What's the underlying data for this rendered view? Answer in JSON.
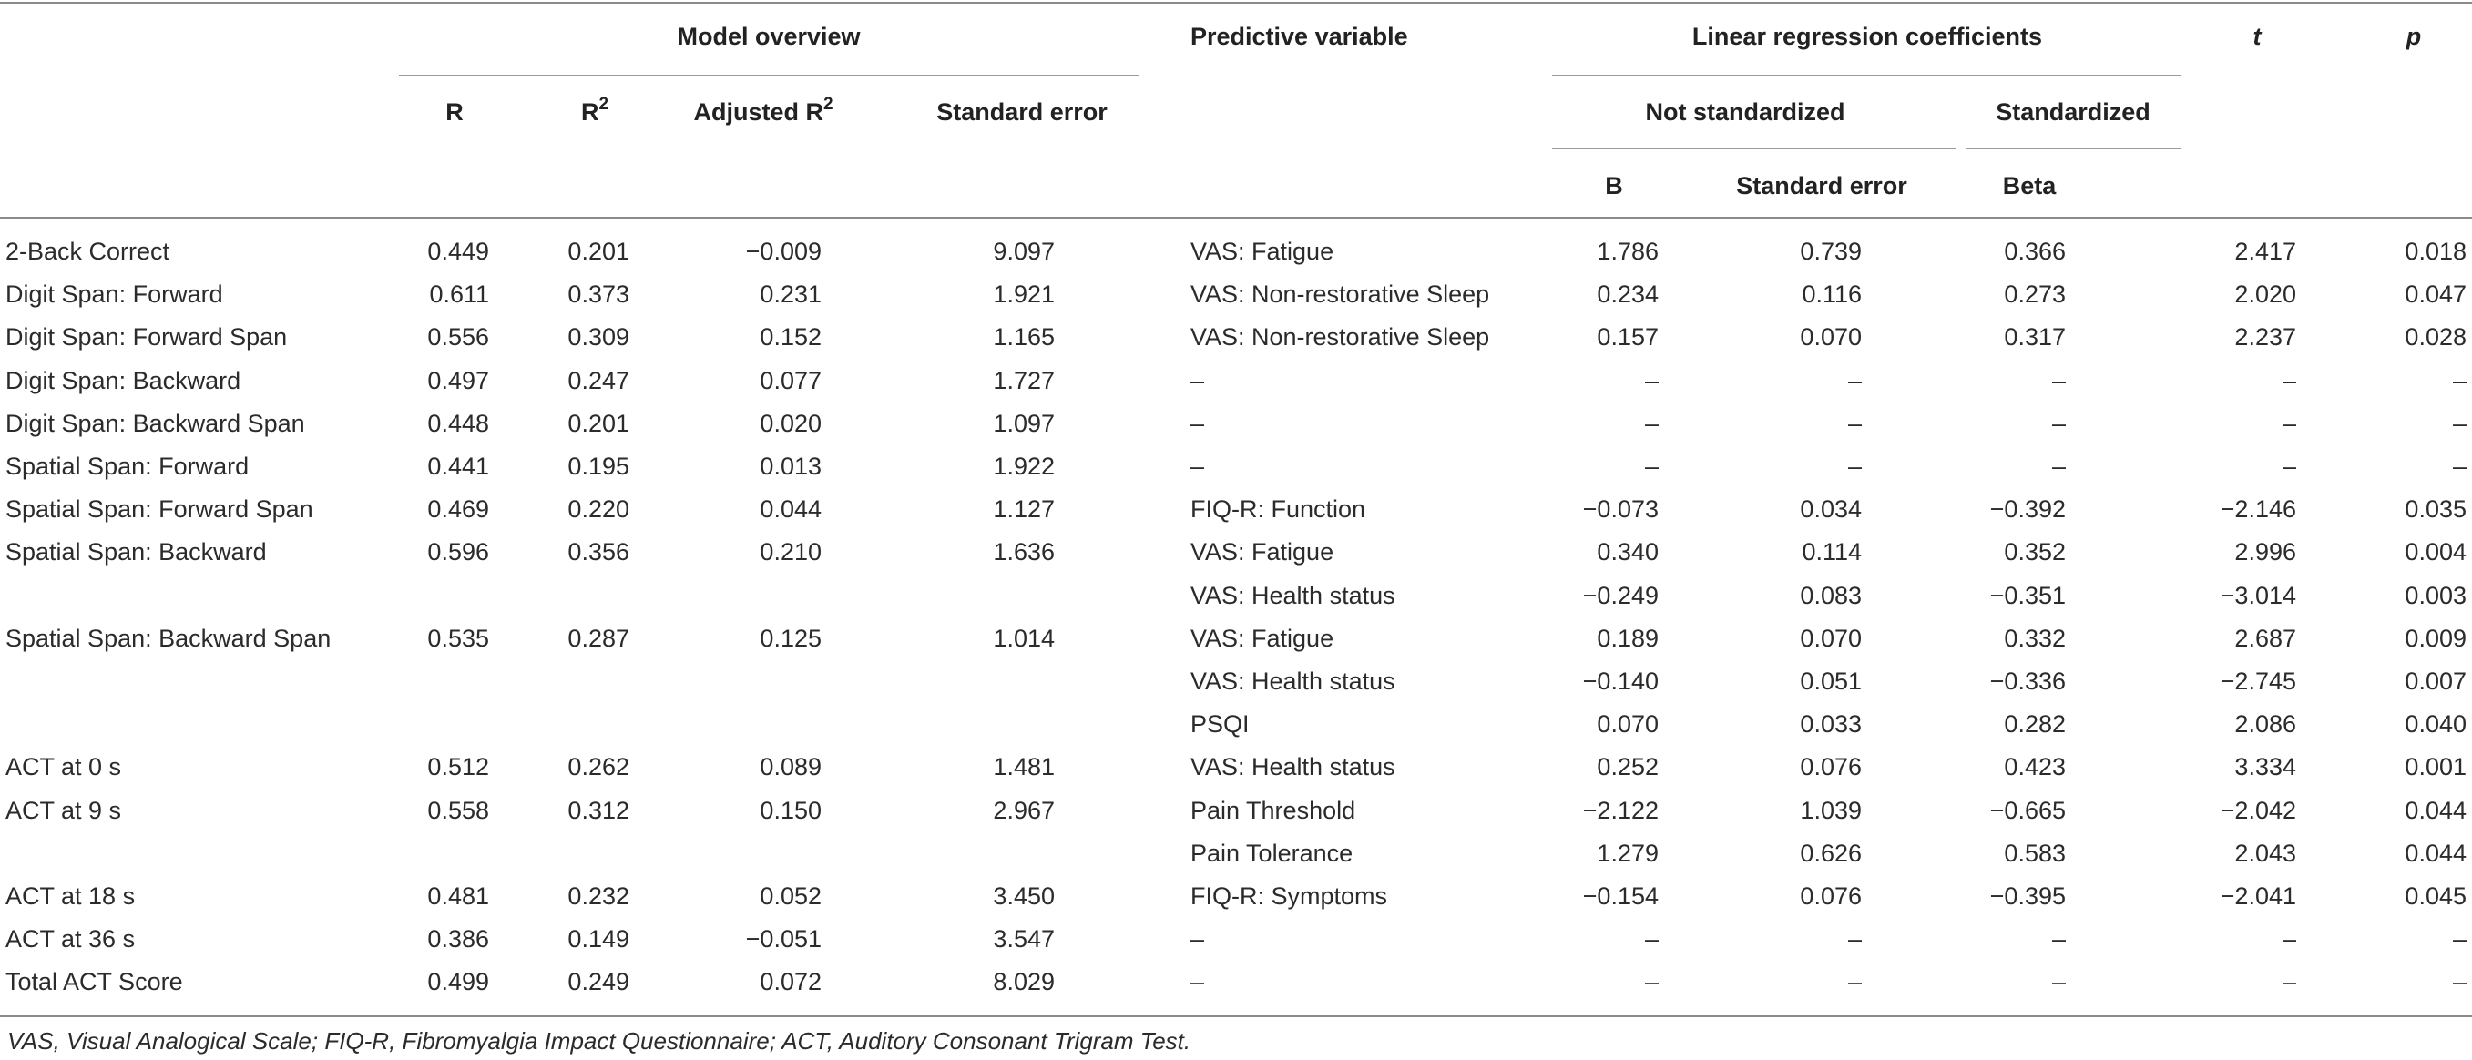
{
  "header": {
    "model_overview": "Model overview",
    "predictive_variable": "Predictive variable",
    "linear_regression_coefficients": "Linear regression coefficients",
    "t": "t",
    "p": "p",
    "r": "R",
    "r2_base": "R",
    "r2_sup": "2",
    "adj_r2_base": "Adjusted R",
    "adj_r2_sup": "2",
    "standard_error": "Standard error",
    "not_standardized": "Not standardized",
    "standardized": "Standardized",
    "b": "B",
    "std_error_coef": "Standard error",
    "beta": "Beta"
  },
  "rows": [
    {
      "measure": "2-Back Correct",
      "r": "0.449",
      "r2": "0.201",
      "adj_r2": "−0.009",
      "se": "9.097",
      "pred": "VAS: Fatigue",
      "b": "1.786",
      "bse": "0.739",
      "beta": "0.366",
      "t": "2.417",
      "p": "0.018"
    },
    {
      "measure": "Digit Span: Forward",
      "r": "0.611",
      "r2": "0.373",
      "adj_r2": "0.231",
      "se": "1.921",
      "pred": "VAS: Non-restorative Sleep",
      "b": "0.234",
      "bse": "0.116",
      "beta": "0.273",
      "t": "2.020",
      "p": "0.047"
    },
    {
      "measure": "Digit Span: Forward Span",
      "r": "0.556",
      "r2": "0.309",
      "adj_r2": "0.152",
      "se": "1.165",
      "pred": "VAS: Non-restorative Sleep",
      "b": "0.157",
      "bse": "0.070",
      "beta": "0.317",
      "t": "2.237",
      "p": "0.028"
    },
    {
      "measure": "Digit Span: Backward",
      "r": "0.497",
      "r2": "0.247",
      "adj_r2": "0.077",
      "se": "1.727",
      "pred": "–",
      "b": "–",
      "bse": "–",
      "beta": "–",
      "t": "–",
      "p": "–"
    },
    {
      "measure": "Digit Span: Backward Span",
      "r": "0.448",
      "r2": "0.201",
      "adj_r2": "0.020",
      "se": "1.097",
      "pred": "–",
      "b": "–",
      "bse": "–",
      "beta": "–",
      "t": "–",
      "p": "–"
    },
    {
      "measure": "Spatial Span: Forward",
      "r": "0.441",
      "r2": "0.195",
      "adj_r2": "0.013",
      "se": "1.922",
      "pred": "–",
      "b": "–",
      "bse": "–",
      "beta": "–",
      "t": "–",
      "p": "–"
    },
    {
      "measure": "Spatial Span: Forward Span",
      "r": "0.469",
      "r2": "0.220",
      "adj_r2": "0.044",
      "se": "1.127",
      "pred": "FIQ-R: Function",
      "b": "−0.073",
      "bse": "0.034",
      "beta": "−0.392",
      "t": "−2.146",
      "p": "0.035"
    },
    {
      "measure": "Spatial Span: Backward",
      "r": "0.596",
      "r2": "0.356",
      "adj_r2": "0.210",
      "se": "1.636",
      "pred": "VAS: Fatigue",
      "b": "0.340",
      "bse": "0.114",
      "beta": "0.352",
      "t": "2.996",
      "p": "0.004"
    },
    {
      "measure": "",
      "r": "",
      "r2": "",
      "adj_r2": "",
      "se": "",
      "pred": "VAS: Health status",
      "b": "−0.249",
      "bse": "0.083",
      "beta": "−0.351",
      "t": "−3.014",
      "p": "0.003"
    },
    {
      "measure": "Spatial Span: Backward Span",
      "r": "0.535",
      "r2": "0.287",
      "adj_r2": "0.125",
      "se": "1.014",
      "pred": "VAS: Fatigue",
      "b": "0.189",
      "bse": "0.070",
      "beta": "0.332",
      "t": "2.687",
      "p": "0.009"
    },
    {
      "measure": "",
      "r": "",
      "r2": "",
      "adj_r2": "",
      "se": "",
      "pred": "VAS: Health status",
      "b": "−0.140",
      "bse": "0.051",
      "beta": "−0.336",
      "t": "−2.745",
      "p": "0.007"
    },
    {
      "measure": "",
      "r": "",
      "r2": "",
      "adj_r2": "",
      "se": "",
      "pred": "PSQI",
      "b": "0.070",
      "bse": "0.033",
      "beta": "0.282",
      "t": "2.086",
      "p": "0.040"
    },
    {
      "measure": "ACT at 0 s",
      "r": "0.512",
      "r2": "0.262",
      "adj_r2": "0.089",
      "se": "1.481",
      "pred": "VAS: Health status",
      "b": "0.252",
      "bse": "0.076",
      "beta": "0.423",
      "t": "3.334",
      "p": "0.001"
    },
    {
      "measure": "ACT at 9 s",
      "r": "0.558",
      "r2": "0.312",
      "adj_r2": "0.150",
      "se": "2.967",
      "pred": "Pain Threshold",
      "b": "−2.122",
      "bse": "1.039",
      "beta": "−0.665",
      "t": "−2.042",
      "p": "0.044"
    },
    {
      "measure": "",
      "r": "",
      "r2": "",
      "adj_r2": "",
      "se": "",
      "pred": "Pain Tolerance",
      "b": "1.279",
      "bse": "0.626",
      "beta": "0.583",
      "t": "2.043",
      "p": "0.044"
    },
    {
      "measure": "ACT at 18 s",
      "r": "0.481",
      "r2": "0.232",
      "adj_r2": "0.052",
      "se": "3.450",
      "pred": "FIQ-R: Symptoms",
      "b": "−0.154",
      "bse": "0.076",
      "beta": "−0.395",
      "t": "−2.041",
      "p": "0.045"
    },
    {
      "measure": "ACT at 36 s",
      "r": "0.386",
      "r2": "0.149",
      "adj_r2": "−0.051",
      "se": "3.547",
      "pred": "–",
      "b": "–",
      "bse": "–",
      "beta": "–",
      "t": "–",
      "p": "–"
    },
    {
      "measure": "Total ACT Score",
      "r": "0.499",
      "r2": "0.249",
      "adj_r2": "0.072",
      "se": "8.029",
      "pred": "–",
      "b": "–",
      "bse": "–",
      "beta": "–",
      "t": "–",
      "p": "–"
    }
  ],
  "footnote": "VAS, Visual Analogical Scale; FIQ-R, Fibromyalgia Impact Questionnaire; ACT, Auditory Consonant Trigram Test."
}
